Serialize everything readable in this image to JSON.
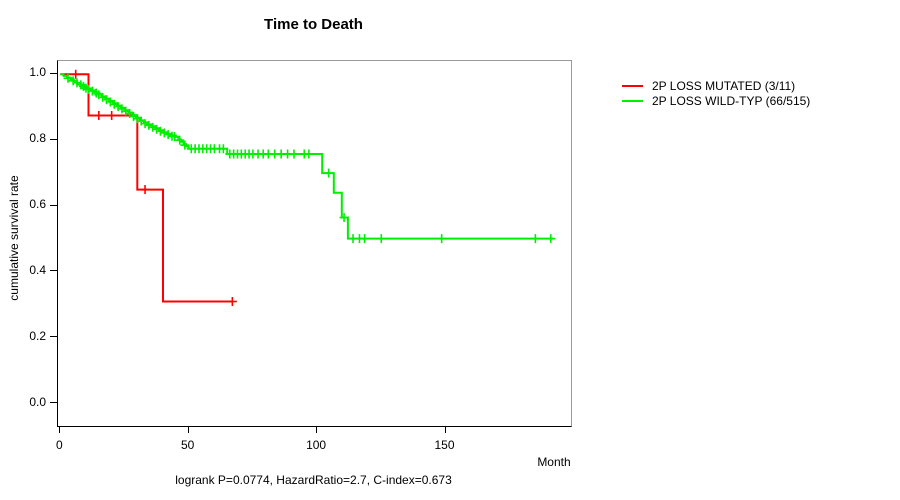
{
  "title": "Time to Death",
  "y_axis_label": "cumulative survival rate",
  "x_axis_label": "Month",
  "caption": "logrank P=0.0774, HazardRatio=2.7, C-index=0.673",
  "legend": [
    {
      "label": "2P LOSS MUTATED (3/11)",
      "color": "#ff0000"
    },
    {
      "label": "2P LOSS WILD-TYP (66/515)",
      "color": "#00ee00"
    }
  ],
  "chart_data": {
    "type": "line",
    "subtype": "kaplan-meier-step",
    "title": "Time to Death",
    "xlabel": "Month",
    "ylabel": "cumulative survival rate",
    "xlim": [
      0,
      199
    ],
    "ylim": [
      0.0,
      1.04
    ],
    "x_ticks": [
      0,
      50,
      100,
      150
    ],
    "y_ticks": [
      0.0,
      0.2,
      0.4,
      0.6,
      0.8,
      1.0
    ],
    "grid": false,
    "legend_position": "right-outside",
    "series": [
      {
        "name": "2P LOSS MUTATED (3/11)",
        "events_total": "3/11",
        "color": "#ff0000",
        "steps": [
          [
            0,
            1.0
          ],
          [
            11,
            0.875
          ],
          [
            30,
            0.65
          ],
          [
            40,
            0.31
          ]
        ],
        "end_month": 67,
        "censors": [
          [
            6,
            1.0
          ],
          [
            15,
            0.875
          ],
          [
            20,
            0.875
          ],
          [
            33,
            0.65
          ],
          [
            67,
            0.31
          ]
        ]
      },
      {
        "name": "2P LOSS WILD-TYP (66/515)",
        "events_total": "66/515",
        "color": "#00ee00",
        "steps": [
          [
            0,
            1.0
          ],
          [
            1.3,
            0.995
          ],
          [
            2.6,
            0.99
          ],
          [
            4,
            0.984
          ],
          [
            5.3,
            0.979
          ],
          [
            6.6,
            0.973
          ],
          [
            8,
            0.968
          ],
          [
            9.3,
            0.962
          ],
          [
            10.6,
            0.957
          ],
          [
            12,
            0.951
          ],
          [
            13.3,
            0.946
          ],
          [
            14.6,
            0.94
          ],
          [
            16,
            0.933
          ],
          [
            17.5,
            0.926
          ],
          [
            19,
            0.919
          ],
          [
            20.5,
            0.912
          ],
          [
            22,
            0.905
          ],
          [
            23.5,
            0.898
          ],
          [
            25,
            0.891
          ],
          [
            26.5,
            0.884
          ],
          [
            28,
            0.876
          ],
          [
            29.5,
            0.868
          ],
          [
            31,
            0.86
          ],
          [
            32.5,
            0.854
          ],
          [
            34,
            0.848
          ],
          [
            35.5,
            0.842
          ],
          [
            37,
            0.836
          ],
          [
            38.5,
            0.83
          ],
          [
            40,
            0.824
          ],
          [
            41.5,
            0.819
          ],
          [
            43,
            0.814
          ],
          [
            45,
            0.81
          ],
          [
            46,
            0.802
          ],
          [
            47,
            0.795
          ],
          [
            48,
            0.788
          ],
          [
            49,
            0.781
          ],
          [
            50,
            0.774
          ],
          [
            65,
            0.758
          ],
          [
            102,
            0.7
          ],
          [
            106.5,
            0.64
          ],
          [
            109.6,
            0.565
          ],
          [
            112,
            0.501
          ]
        ],
        "end_month": 192,
        "censors": [
          [
            3,
            0.988
          ],
          [
            5,
            0.98
          ],
          [
            6.5,
            0.974
          ],
          [
            8,
            0.968
          ],
          [
            9,
            0.963
          ],
          [
            10,
            0.958
          ],
          [
            11,
            0.954
          ],
          [
            12.5,
            0.949
          ],
          [
            14,
            0.943
          ],
          [
            15,
            0.938
          ],
          [
            16.5,
            0.93
          ],
          [
            18,
            0.923
          ],
          [
            19.5,
            0.916
          ],
          [
            21,
            0.909
          ],
          [
            22.5,
            0.902
          ],
          [
            24,
            0.895
          ],
          [
            25.5,
            0.888
          ],
          [
            27,
            0.881
          ],
          [
            28.5,
            0.872
          ],
          [
            30,
            0.865
          ],
          [
            31.5,
            0.858
          ],
          [
            33,
            0.85
          ],
          [
            34.5,
            0.845
          ],
          [
            36,
            0.839
          ],
          [
            37.5,
            0.833
          ],
          [
            39,
            0.827
          ],
          [
            40.5,
            0.822
          ],
          [
            42,
            0.817
          ],
          [
            43.5,
            0.812
          ],
          [
            44.5,
            0.811
          ],
          [
            46.5,
            0.8
          ],
          [
            48.5,
            0.785
          ],
          [
            51,
            0.774
          ],
          [
            52.5,
            0.774
          ],
          [
            54,
            0.774
          ],
          [
            55.5,
            0.774
          ],
          [
            57,
            0.774
          ],
          [
            58.5,
            0.774
          ],
          [
            60,
            0.774
          ],
          [
            62,
            0.774
          ],
          [
            63.5,
            0.774
          ],
          [
            66,
            0.758
          ],
          [
            67.5,
            0.758
          ],
          [
            69,
            0.758
          ],
          [
            70.5,
            0.758
          ],
          [
            72,
            0.758
          ],
          [
            73.5,
            0.758
          ],
          [
            75,
            0.758
          ],
          [
            77,
            0.758
          ],
          [
            79,
            0.758
          ],
          [
            81,
            0.758
          ],
          [
            83.5,
            0.758
          ],
          [
            86,
            0.758
          ],
          [
            88.5,
            0.758
          ],
          [
            91,
            0.758
          ],
          [
            95,
            0.758
          ],
          [
            96.8,
            0.758
          ],
          [
            104.5,
            0.7
          ],
          [
            110.5,
            0.565
          ],
          [
            114,
            0.501
          ],
          [
            116.5,
            0.501
          ],
          [
            118.5,
            0.501
          ],
          [
            125,
            0.501
          ],
          [
            148.5,
            0.501
          ],
          [
            185,
            0.501
          ],
          [
            191,
            0.501
          ]
        ]
      }
    ]
  }
}
